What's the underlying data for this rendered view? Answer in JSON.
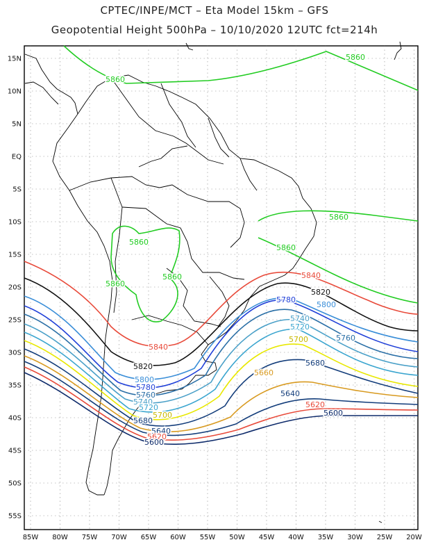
{
  "header": {
    "line1": "CPTEC/INPE/MCT –  Eta Model 15km – GFS",
    "line2": "Geopotential Height 500hPa – 10/10/2020 12UTC fct=214h"
  },
  "axes": {
    "lat_labels": [
      "15N",
      "10N",
      "5N",
      "EQ",
      "5S",
      "10S",
      "15S",
      "20S",
      "25S",
      "30S",
      "35S",
      "40S",
      "45S",
      "50S",
      "55S"
    ],
    "lon_labels": [
      "85W",
      "80W",
      "75W",
      "70W",
      "65W",
      "60W",
      "55W",
      "50W",
      "45W",
      "40W",
      "35W",
      "30W",
      "25W",
      "20W"
    ]
  },
  "contours": [
    {
      "level": "5860",
      "color": "#22cc22"
    },
    {
      "level": "5840",
      "color": "#e84a3a"
    },
    {
      "level": "5820",
      "color": "#111111"
    },
    {
      "level": "5800",
      "color": "#3a8ed8"
    },
    {
      "level": "5780",
      "color": "#1f3fd8"
    },
    {
      "level": "5760",
      "color": "#2a6fa6"
    },
    {
      "level": "5740",
      "color": "#4aa0c8"
    },
    {
      "level": "5720",
      "color": "#3aa5cf"
    },
    {
      "level": "5700",
      "color": "#e8e800"
    },
    {
      "level": "5680",
      "color": "#123c7a"
    },
    {
      "level": "5660",
      "color": "#d89a20"
    },
    {
      "level": "5640",
      "color": "#123c7a"
    },
    {
      "level": "5620",
      "color": "#e84a3a"
    },
    {
      "level": "5600",
      "color": "#0d2a6a"
    }
  ],
  "contour_labels": [
    {
      "text": "5860",
      "color": "#22cc22"
    },
    {
      "text": "5860",
      "color": "#22cc22"
    },
    {
      "text": "5860",
      "color": "#22cc22"
    },
    {
      "text": "5860",
      "color": "#22cc22"
    },
    {
      "text": "5860",
      "color": "#22cc22"
    },
    {
      "text": "5860",
      "color": "#22cc22"
    },
    {
      "text": "5860",
      "color": "#22cc22"
    },
    {
      "text": "5840",
      "color": "#e84a3a"
    },
    {
      "text": "5840",
      "color": "#e84a3a"
    },
    {
      "text": "5820",
      "color": "#111111"
    },
    {
      "text": "5820",
      "color": "#111111"
    },
    {
      "text": "5800",
      "color": "#3a8ed8"
    },
    {
      "text": "5800",
      "color": "#3a8ed8"
    },
    {
      "text": "5780",
      "color": "#1f3fd8"
    },
    {
      "text": "5780",
      "color": "#1f3fd8"
    },
    {
      "text": "5760",
      "color": "#2a6fa6"
    },
    {
      "text": "5760",
      "color": "#2a6fa6"
    },
    {
      "text": "5740",
      "color": "#4aa0c8"
    },
    {
      "text": "5740",
      "color": "#4aa0c8"
    },
    {
      "text": "5720",
      "color": "#3aa5cf"
    },
    {
      "text": "5720",
      "color": "#3aa5cf"
    },
    {
      "text": "5700",
      "color": "#c8b800"
    },
    {
      "text": "5700",
      "color": "#c8b800"
    },
    {
      "text": "5680",
      "color": "#123c7a"
    },
    {
      "text": "5680",
      "color": "#123c7a"
    },
    {
      "text": "5660",
      "color": "#d89a20"
    },
    {
      "text": "5640",
      "color": "#123c7a"
    },
    {
      "text": "5640",
      "color": "#123c7a"
    },
    {
      "text": "5620",
      "color": "#e84a3a"
    },
    {
      "text": "5620",
      "color": "#e84a3a"
    },
    {
      "text": "5600",
      "color": "#0d2a6a"
    },
    {
      "text": "5600",
      "color": "#0d2a6a"
    }
  ]
}
